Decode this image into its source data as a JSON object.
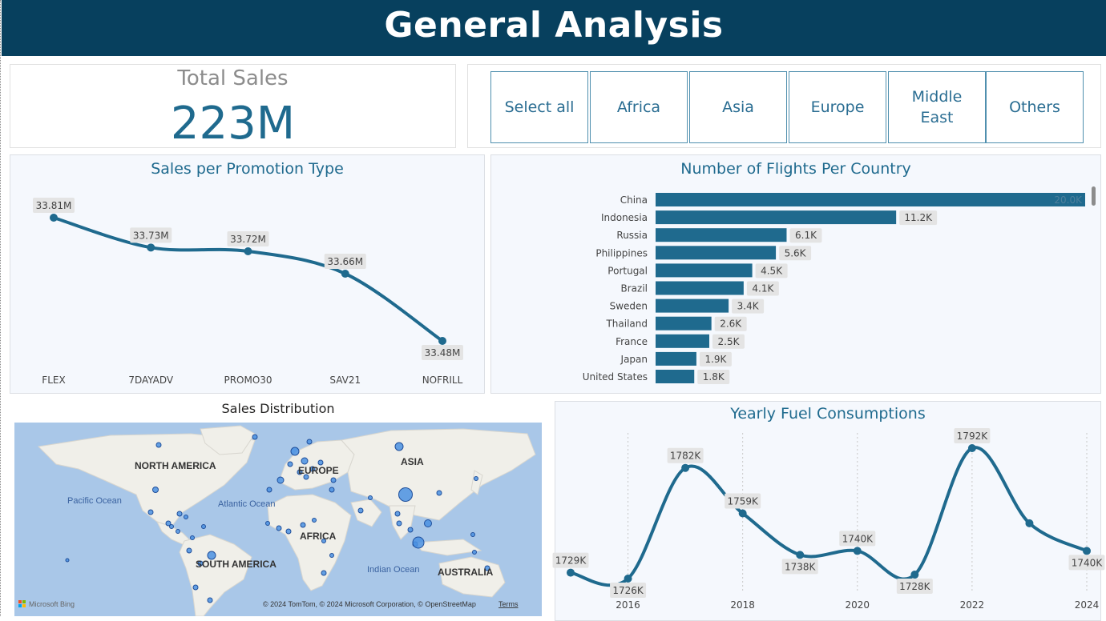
{
  "header": {
    "title": "General Analysis"
  },
  "kpi": {
    "label": "Total Sales",
    "value": "223M"
  },
  "slicer": {
    "buttons": [
      "Select all",
      "Africa",
      "Asia",
      "Europe",
      "Middle East",
      "Others"
    ]
  },
  "map": {
    "title": "Sales Distribution",
    "labels": [
      "NORTH AMERICA",
      "EUROPE",
      "ASIA",
      "Pacific Ocean",
      "Atlantic Ocean",
      "AFRICA",
      "SOUTH AMERICA",
      "Indian Ocean",
      "AUSTRALIA"
    ],
    "logo": "Microsoft Bing",
    "attribution": "© 2024 TomTom, © 2024 Microsoft Corporation, © OpenStreetMap",
    "terms": "Terms"
  },
  "colors": {
    "header": "#07405e",
    "accent": "#1f6a8e",
    "bar": "#1f6a8e",
    "map_water": "#a9c7e8",
    "map_land": "#f0efe9",
    "bubble": "#4a90e2"
  },
  "chart_data": [
    {
      "type": "line",
      "title": "Sales per Promotion Type",
      "categories": [
        "FLEX",
        "7DAYADV",
        "PROMO30",
        "SAV21",
        "NOFRILL"
      ],
      "values": [
        33.81,
        33.73,
        33.72,
        33.66,
        33.48
      ],
      "data_labels": [
        "33.81M",
        "33.73M",
        "33.72M",
        "33.66M",
        "33.48M"
      ],
      "ylim": [
        33.46,
        33.85
      ],
      "grid": false
    },
    {
      "type": "bar",
      "orientation": "horizontal",
      "title": "Number of Flights Per Country",
      "categories": [
        "China",
        "Indonesia",
        "Russia",
        "Philippines",
        "Portugal",
        "Brazil",
        "Sweden",
        "Thailand",
        "France",
        "Japan",
        "United States"
      ],
      "values": [
        20000,
        11200,
        6100,
        5600,
        4500,
        4100,
        3400,
        2600,
        2500,
        1900,
        1800
      ],
      "data_labels": [
        "20.0K",
        "11.2K",
        "6.1K",
        "5.6K",
        "4.5K",
        "4.1K",
        "3.4K",
        "2.6K",
        "2.5K",
        "1.9K",
        "1.8K"
      ],
      "xlim": [
        0,
        20000
      ],
      "grid": false
    },
    {
      "type": "line",
      "title": "Yearly Fuel Consumptions",
      "x": [
        2015,
        2016,
        2017,
        2018,
        2019,
        2020,
        2021,
        2022,
        2023,
        2024
      ],
      "values": [
        1729,
        1726,
        1782,
        1759,
        1738,
        1740,
        1728,
        1792,
        1754,
        1740
      ],
      "data_labels": [
        "1729K",
        "1726K",
        "1782K",
        "1759K",
        "1738K",
        "1740K",
        "1728K",
        "1792K",
        "",
        "1740K"
      ],
      "x_ticks": [
        "2016",
        "2018",
        "2020",
        "2022",
        "2024"
      ],
      "ylim": [
        1715,
        1800
      ],
      "grid": "vertical dotted"
    }
  ]
}
